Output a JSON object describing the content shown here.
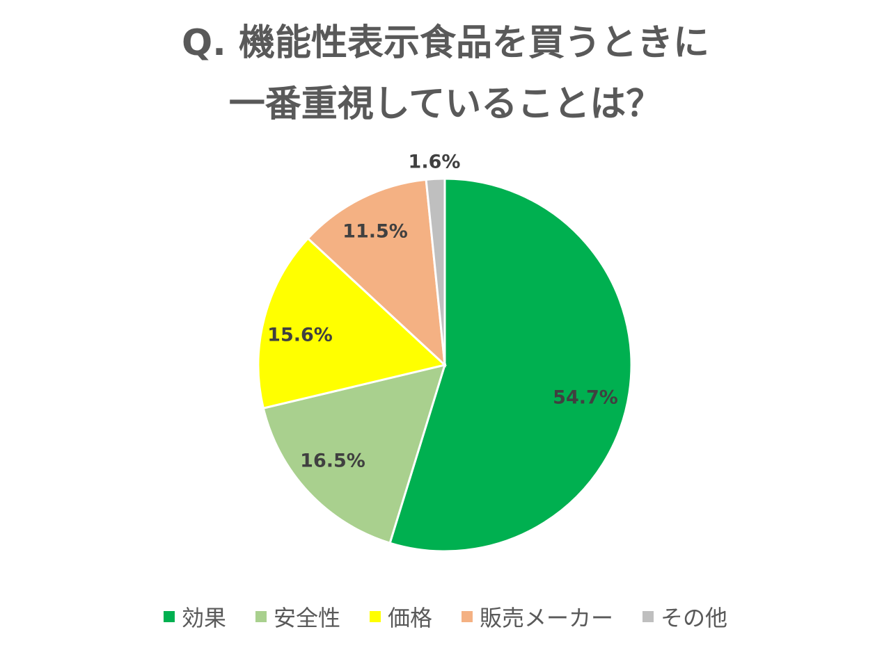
{
  "chart_data": {
    "type": "pie",
    "title_line1": "Q. 機能性表示食品を買うときに",
    "title_line2": "一番重視していることは？",
    "categories": [
      "効果",
      "安全性",
      "価格",
      "販売メーカー",
      "その他"
    ],
    "values": [
      54.7,
      16.5,
      15.6,
      11.5,
      1.6
    ],
    "labels": [
      "54.7%",
      "16.5%",
      "15.6%",
      "11.5%",
      "1.6%"
    ],
    "colors": [
      "#00B050",
      "#A9D08E",
      "#FFFF00",
      "#F4B183",
      "#BFBFBF"
    ],
    "start_angle": "12 o'clock",
    "direction": "clockwise",
    "legend_position": "bottom"
  }
}
